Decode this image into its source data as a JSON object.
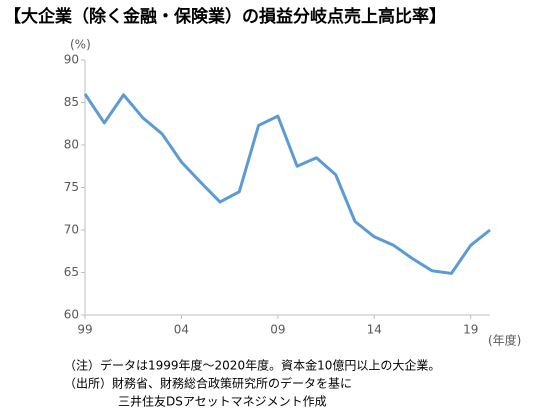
{
  "chart_data": {
    "type": "line",
    "title": "【大企業（除く金融・保険業）の損益分岐点売上高比率】",
    "y_label": "(%)",
    "x_label": "(年度)",
    "x": [
      1999,
      2000,
      2001,
      2002,
      2003,
      2004,
      2005,
      2006,
      2007,
      2008,
      2009,
      2010,
      2011,
      2012,
      2013,
      2014,
      2015,
      2016,
      2017,
      2018,
      2019,
      2020
    ],
    "series": [
      {
        "name": "損益分岐点売上高比率",
        "color": "#5b9bd5",
        "values": [
          86.0,
          82.6,
          85.9,
          83.2,
          81.3,
          78.0,
          75.6,
          73.3,
          74.5,
          82.3,
          83.4,
          77.5,
          78.5,
          76.5,
          71.0,
          69.2,
          68.2,
          66.6,
          65.2,
          64.9,
          68.2,
          70.0
        ]
      }
    ],
    "xlim": [
      1999,
      2020
    ],
    "xticks": [
      {
        "value": 1999,
        "label": "99"
      },
      {
        "value": 2004,
        "label": "04"
      },
      {
        "value": 2009,
        "label": "09"
      },
      {
        "value": 2014,
        "label": "14"
      },
      {
        "value": 2019,
        "label": "19"
      }
    ],
    "ylim": [
      60,
      90
    ],
    "yticks": [
      60,
      65,
      70,
      75,
      80,
      85,
      90
    ],
    "grid": false,
    "notes": [
      "（注）データは1999年度～2020年度。資本金10億円以上の大企業。",
      "（出所）財務省、財務総合政策研究所のデータを基に",
      "三井住友DSアセットマネジメント作成"
    ]
  }
}
